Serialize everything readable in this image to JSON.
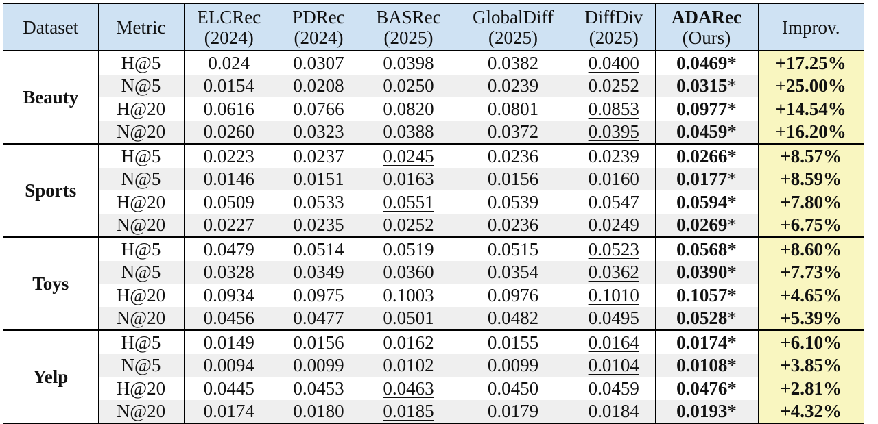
{
  "table": {
    "headers": [
      {
        "line1": "Dataset",
        "line2": ""
      },
      {
        "line1": "Metric",
        "line2": ""
      },
      {
        "line1": "ELCRec",
        "line2": "(2024)"
      },
      {
        "line1": "PDRec",
        "line2": "(2024)"
      },
      {
        "line1": "BASRec",
        "line2": "(2025)"
      },
      {
        "line1": "GlobalDiff",
        "line2": "(2025)"
      },
      {
        "line1": "DiffDiv",
        "line2": "(2025)"
      },
      {
        "line1": "ADARec",
        "line2": "(Ours)"
      },
      {
        "line1": "Improv.",
        "line2": ""
      }
    ],
    "groups": [
      {
        "dataset": "Beauty",
        "rows": [
          {
            "metric": "H@5",
            "v": [
              "0.024",
              "0.0307",
              "0.0398",
              "0.0382",
              "0.0400"
            ],
            "ul": 4,
            "ours": "0.0469",
            "star": "*",
            "improv": "+17.25%"
          },
          {
            "metric": "N@5",
            "v": [
              "0.0154",
              "0.0208",
              "0.0250",
              "0.0239",
              "0.0252"
            ],
            "ul": 4,
            "ours": "0.0315",
            "star": "*",
            "improv": "+25.00%"
          },
          {
            "metric": "H@20",
            "v": [
              "0.0616",
              "0.0766",
              "0.0820",
              "0.0801",
              "0.0853"
            ],
            "ul": 4,
            "ours": "0.0977",
            "star": "*",
            "improv": "+14.54%"
          },
          {
            "metric": "N@20",
            "v": [
              "0.0260",
              "0.0323",
              "0.0388",
              "0.0372",
              "0.0395"
            ],
            "ul": 4,
            "ours": "0.0459",
            "star": "*",
            "improv": "+16.20%"
          }
        ]
      },
      {
        "dataset": "Sports",
        "rows": [
          {
            "metric": "H@5",
            "v": [
              "0.0223",
              "0.0237",
              "0.0245",
              "0.0236",
              "0.0239"
            ],
            "ul": 2,
            "ours": "0.0266",
            "star": "*",
            "improv": "+8.57%"
          },
          {
            "metric": "N@5",
            "v": [
              "0.0146",
              "0.0151",
              "0.0163",
              "0.0156",
              "0.0160"
            ],
            "ul": 2,
            "ours": "0.0177",
            "star": "*",
            "improv": "+8.59%"
          },
          {
            "metric": "H@20",
            "v": [
              "0.0509",
              "0.0533",
              "0.0551",
              "0.0539",
              "0.0547"
            ],
            "ul": 2,
            "ours": "0.0594",
            "star": "*",
            "improv": "+7.80%"
          },
          {
            "metric": "N@20",
            "v": [
              "0.0227",
              "0.0235",
              "0.0252",
              "0.0236",
              "0.0249"
            ],
            "ul": 2,
            "ours": "0.0269",
            "star": "*",
            "improv": "+6.75%"
          }
        ]
      },
      {
        "dataset": "Toys",
        "rows": [
          {
            "metric": "H@5",
            "v": [
              "0.0479",
              "0.0514",
              "0.0519",
              "0.0515",
              "0.0523"
            ],
            "ul": 4,
            "ours": "0.0568",
            "star": "*",
            "improv": "+8.60%"
          },
          {
            "metric": "N@5",
            "v": [
              "0.0328",
              "0.0349",
              "0.0360",
              "0.0354",
              "0.0362"
            ],
            "ul": 4,
            "ours": "0.0390",
            "star": "*",
            "improv": "+7.73%"
          },
          {
            "metric": "H@20",
            "v": [
              "0.0934",
              "0.0975",
              "0.1003",
              "0.0976",
              "0.1010"
            ],
            "ul": 4,
            "ours": "0.1057",
            "star": "*",
            "improv": "+4.65%"
          },
          {
            "metric": "N@20",
            "v": [
              "0.0456",
              "0.0477",
              "0.0501",
              "0.0482",
              "0.0495"
            ],
            "ul": 2,
            "ours": "0.0528",
            "star": "*",
            "improv": "+5.39%"
          }
        ]
      },
      {
        "dataset": "Yelp",
        "rows": [
          {
            "metric": "H@5",
            "v": [
              "0.0149",
              "0.0156",
              "0.0162",
              "0.0155",
              "0.0164"
            ],
            "ul": 4,
            "ours": "0.0174",
            "star": "*",
            "improv": "+6.10%"
          },
          {
            "metric": "N@5",
            "v": [
              "0.0094",
              "0.0099",
              "0.0102",
              "0.0099",
              "0.0104"
            ],
            "ul": 4,
            "ours": "0.0108",
            "star": "*",
            "improv": "+3.85%"
          },
          {
            "metric": "H@20",
            "v": [
              "0.0445",
              "0.0453",
              "0.0463",
              "0.0450",
              "0.0459"
            ],
            "ul": 2,
            "ours": "0.0476",
            "star": "*",
            "improv": "+2.81%"
          },
          {
            "metric": "N@20",
            "v": [
              "0.0174",
              "0.0180",
              "0.0185",
              "0.0179",
              "0.0184"
            ],
            "ul": 2,
            "ours": "0.0193",
            "star": "*",
            "improv": "+4.32%"
          }
        ]
      }
    ]
  },
  "colors": {
    "header_bg": "#cfe2f3",
    "improv_bg": "#f9f6c0",
    "row_shade": "#efefef",
    "rule": "#000000"
  }
}
